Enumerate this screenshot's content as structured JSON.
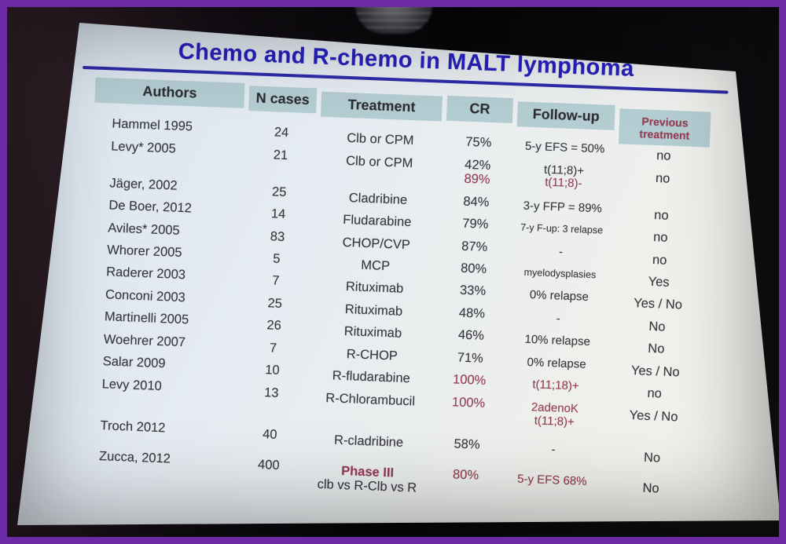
{
  "colors": {
    "frame_purple": "#6c2aa6",
    "title_blue": "#2620bf",
    "rule_blue": "#2e2ca8",
    "header_teal": "#b4cdd2",
    "body_text": "#36363c",
    "accent_maroon": "#9a3a50"
  },
  "slide": {
    "title": "Chemo and R-chemo in MALT lymphoma",
    "table": {
      "columns": [
        {
          "label": "Authors"
        },
        {
          "label": "N cases"
        },
        {
          "label": "Treatment"
        },
        {
          "label": "CR"
        },
        {
          "label": "Follow-up"
        },
        {
          "label": "Previous treatment",
          "red": true
        }
      ],
      "rows": [
        {
          "author": "Hammel 1995",
          "n": "24",
          "treatment": [
            {
              "t": "Clb or CPM"
            }
          ],
          "cr": [
            {
              "t": "75%"
            }
          ],
          "followup": [
            {
              "t": "5-y EFS =  50%"
            }
          ],
          "prev": "no"
        },
        {
          "author": "Levy* 2005",
          "n": "21",
          "treatment": [
            {
              "t": "Clb or CPM"
            }
          ],
          "cr": [
            {
              "t": "42%"
            },
            {
              "t": "89%",
              "red": true
            }
          ],
          "followup": [
            {
              "t": "t(11;8)+"
            },
            {
              "t": "t(11;8)-",
              "red": true
            }
          ],
          "prev": "no"
        },
        {
          "author": "Jäger, 2002",
          "n": "25",
          "treatment": [
            {
              "t": "Cladribine"
            }
          ],
          "cr": [
            {
              "t": "84%"
            }
          ],
          "followup": [
            {
              "t": "3-y FFP = 89%"
            }
          ],
          "prev": "no"
        },
        {
          "author": "De Boer, 2012",
          "n": "14",
          "treatment": [
            {
              "t": "Fludarabine"
            }
          ],
          "cr": [
            {
              "t": "79%"
            }
          ],
          "followup": [
            {
              "t": "7-y F-up: 3 relapse",
              "small": true
            }
          ],
          "prev": "no"
        },
        {
          "author": "Aviles* 2005",
          "n": "83",
          "treatment": [
            {
              "t": "CHOP/CVP"
            }
          ],
          "cr": [
            {
              "t": "87%"
            }
          ],
          "followup": [
            {
              "t": "-"
            }
          ],
          "prev": "no"
        },
        {
          "author": "Whorer 2005",
          "n": "5",
          "treatment": [
            {
              "t": "MCP"
            }
          ],
          "cr": [
            {
              "t": "80%"
            }
          ],
          "followup": [
            {
              "t": "myelodysplasies",
              "small": true
            }
          ],
          "prev": "Yes"
        },
        {
          "author": "Raderer 2003",
          "n": "7",
          "treatment": [
            {
              "t": "Rituximab"
            }
          ],
          "cr": [
            {
              "t": "33%"
            }
          ],
          "followup": [
            {
              "t": "0% relapse"
            }
          ],
          "prev": "Yes / No"
        },
        {
          "author": "Conconi 2003",
          "n": "25",
          "treatment": [
            {
              "t": "Rituximab"
            }
          ],
          "cr": [
            {
              "t": "48%"
            }
          ],
          "followup": [
            {
              "t": "-"
            }
          ],
          "prev": "No"
        },
        {
          "author": "Martinelli 2005",
          "n": "26",
          "treatment": [
            {
              "t": "Rituximab"
            }
          ],
          "cr": [
            {
              "t": "46%"
            }
          ],
          "followup": [
            {
              "t": "10% relapse"
            }
          ],
          "prev": "No"
        },
        {
          "author": "Woehrer 2007",
          "n": "7",
          "treatment": [
            {
              "t": "R-CHOP"
            }
          ],
          "cr": [
            {
              "t": "71%"
            }
          ],
          "followup": [
            {
              "t": "0% relapse"
            }
          ],
          "prev": "Yes / No"
        },
        {
          "author": "Salar 2009",
          "n": "10",
          "treatment": [
            {
              "t": "R-fludarabine"
            }
          ],
          "cr": [
            {
              "t": "100%",
              "red": true
            }
          ],
          "followup": [
            {
              "t": "t(11;18)+",
              "red": true
            }
          ],
          "prev": "no"
        },
        {
          "author": "Levy 2010",
          "n": "13",
          "treatment": [
            {
              "t": "R-Chlorambucil"
            }
          ],
          "cr": [
            {
              "t": "100%",
              "red": true
            }
          ],
          "followup": [
            {
              "t": "2adenoK",
              "red": true
            },
            {
              "t": "t(11;8)+",
              "red": true
            }
          ],
          "prev": "Yes / No"
        },
        {
          "author": "Troch 2012",
          "n": "40",
          "treatment": [
            {
              "t": "R-cladribine"
            }
          ],
          "cr": [
            {
              "t": "58%"
            }
          ],
          "followup": [
            {
              "t": "-"
            }
          ],
          "prev": "No",
          "gap": true
        },
        {
          "author": "Zucca, 2012",
          "n": "400",
          "treatment": [
            {
              "t": "Phase III",
              "red": true,
              "bold": true
            },
            {
              "t": "clb vs R-Clb vs R"
            }
          ],
          "cr": [
            {
              "t": "80%",
              "red": true
            }
          ],
          "followup": [
            {
              "t": "5-y EFS 68%",
              "red": true
            }
          ],
          "prev": "No",
          "gap": true
        }
      ]
    }
  }
}
